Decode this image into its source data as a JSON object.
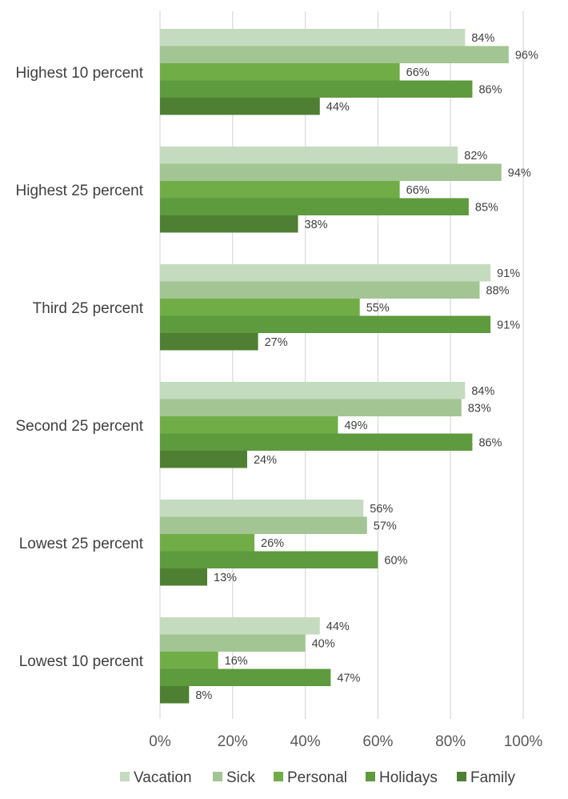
{
  "chart_data": {
    "type": "bar",
    "orientation": "horizontal",
    "title": "",
    "xlabel": "",
    "ylabel": "",
    "xlim": [
      0,
      100
    ],
    "x_ticks": [
      "0%",
      "20%",
      "40%",
      "60%",
      "80%",
      "100%"
    ],
    "grid": "vertical",
    "legend_position": "bottom",
    "categories": [
      "Highest 10 percent",
      "Highest 25 percent",
      "Third 25 percent",
      "Second 25 percent",
      "Lowest 25 percent",
      "Lowest 10 percent"
    ],
    "series": [
      {
        "name": "Vacation",
        "color": "#c5dbbf",
        "values": [
          84,
          82,
          91,
          84,
          56,
          44
        ],
        "labels": [
          "84%",
          "82%",
          "91%",
          "84%",
          "56%",
          "44%"
        ]
      },
      {
        "name": "Sick",
        "color": "#a2c593",
        "values": [
          96,
          94,
          88,
          83,
          57,
          40
        ],
        "labels": [
          "96%",
          "94%",
          "88%",
          "83%",
          "57%",
          "40%"
        ]
      },
      {
        "name": "Personal",
        "color": "#70ad47",
        "values": [
          66,
          66,
          55,
          49,
          26,
          16
        ],
        "labels": [
          "66%",
          "66%",
          "55%",
          "49%",
          "26%",
          "16%"
        ]
      },
      {
        "name": "Holidays",
        "color": "#5e9a3e",
        "values": [
          86,
          85,
          91,
          86,
          60,
          47
        ],
        "labels": [
          "86%",
          "85%",
          "91%",
          "86%",
          "60%",
          "47%"
        ]
      },
      {
        "name": "Family",
        "color": "#4e7f32",
        "values": [
          44,
          38,
          27,
          24,
          13,
          8
        ],
        "labels": [
          "44%",
          "38%",
          "27%",
          "24%",
          "13%",
          "8%"
        ]
      }
    ]
  }
}
